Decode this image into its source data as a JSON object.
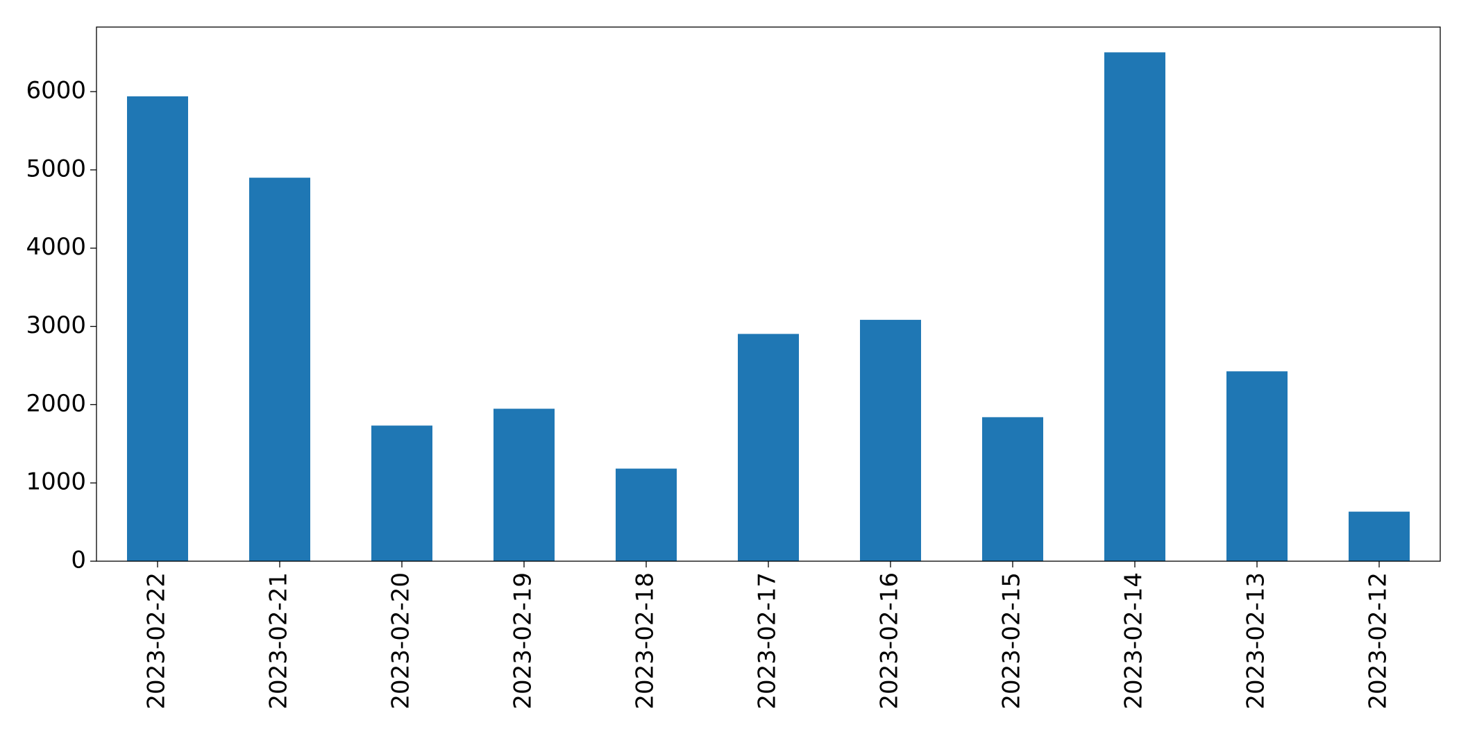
{
  "chart_data": {
    "type": "bar",
    "categories": [
      "2023-02-22",
      "2023-02-21",
      "2023-02-20",
      "2023-02-19",
      "2023-02-18",
      "2023-02-17",
      "2023-02-16",
      "2023-02-15",
      "2023-02-14",
      "2023-02-13",
      "2023-02-12"
    ],
    "values": [
      5940,
      4900,
      1733,
      1948,
      1183,
      2904,
      3084,
      1840,
      6502,
      2426,
      633
    ],
    "color": "#1f77b4",
    "ylim": [
      0,
      6825
    ],
    "yticks": [
      0,
      1000,
      2000,
      3000,
      4000,
      5000,
      6000
    ],
    "grid": false
  }
}
